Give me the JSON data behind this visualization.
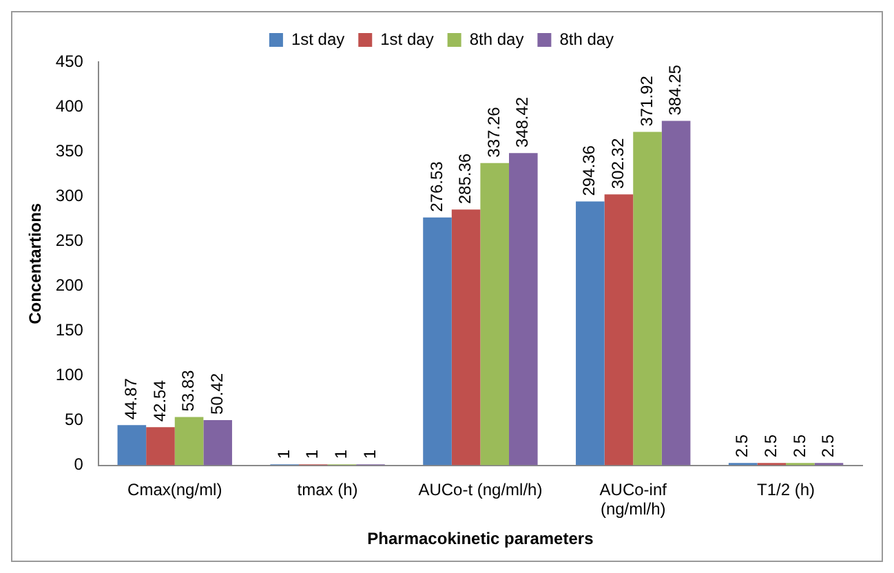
{
  "chart_data": {
    "type": "bar",
    "xlabel": "Pharmacokinetic parameters",
    "ylabel": "Concentartions",
    "categories": [
      "Cmax(ng/ml)",
      "tmax (h)",
      "AUCo-t (ng/ml/h)",
      "AUCo-inf (ng/ml/h)",
      "T1/2 (h)"
    ],
    "series": [
      {
        "name": "1st day",
        "color": "#4f81bd",
        "values": [
          44.87,
          1,
          276.53,
          294.36,
          2.5
        ]
      },
      {
        "name": "1st day",
        "color": "#c0504d",
        "values": [
          42.54,
          1,
          285.36,
          302.32,
          2.5
        ]
      },
      {
        "name": "8th day",
        "color": "#9bbb59",
        "values": [
          53.83,
          1,
          337.26,
          371.92,
          2.5
        ]
      },
      {
        "name": "8th day",
        "color": "#8064a2",
        "values": [
          50.42,
          1,
          348.42,
          384.25,
          2.5
        ]
      }
    ],
    "ylim": [
      0,
      450
    ],
    "yticks": [
      0,
      50,
      100,
      150,
      200,
      250,
      300,
      350,
      400,
      450
    ],
    "grid": false,
    "legend": "top",
    "data_labels": true
  }
}
